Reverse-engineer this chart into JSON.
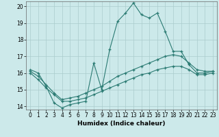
{
  "xlabel": "Humidex (Indice chaleur)",
  "xlim": [
    -0.5,
    23.5
  ],
  "ylim": [
    13.8,
    20.3
  ],
  "yticks": [
    14,
    15,
    16,
    17,
    18,
    19,
    20
  ],
  "xticks": [
    0,
    1,
    2,
    3,
    4,
    5,
    6,
    7,
    8,
    9,
    10,
    11,
    12,
    13,
    14,
    15,
    16,
    17,
    18,
    19,
    20,
    21,
    22,
    23
  ],
  "bg_color": "#cce9ea",
  "grid_color": "#aacccc",
  "line_color": "#2a7a72",
  "series1_x": [
    0,
    1,
    2,
    3,
    4,
    5,
    6,
    7,
    8,
    9,
    10,
    11,
    12,
    13,
    14,
    15,
    16,
    17,
    18,
    19,
    20,
    21,
    22,
    23
  ],
  "series1_y": [
    16.2,
    16.0,
    15.2,
    14.2,
    13.9,
    14.1,
    14.2,
    14.3,
    16.6,
    15.0,
    17.4,
    19.1,
    19.6,
    20.2,
    19.5,
    19.3,
    19.6,
    18.5,
    17.3,
    17.3,
    16.5,
    16.0,
    16.0,
    16.1
  ],
  "series2_x": [
    0,
    1,
    2,
    3,
    4,
    5,
    6,
    7,
    8,
    9,
    10,
    11,
    12,
    13,
    14,
    15,
    16,
    17,
    18,
    19,
    20,
    21,
    22,
    23
  ],
  "series2_y": [
    16.1,
    15.8,
    15.3,
    14.8,
    14.4,
    14.5,
    14.6,
    14.8,
    15.0,
    15.2,
    15.5,
    15.8,
    16.0,
    16.2,
    16.4,
    16.6,
    16.8,
    17.0,
    17.1,
    17.0,
    16.6,
    16.2,
    16.1,
    16.1
  ],
  "series3_x": [
    0,
    1,
    2,
    3,
    4,
    5,
    6,
    7,
    8,
    9,
    10,
    11,
    12,
    13,
    14,
    15,
    16,
    17,
    18,
    19,
    20,
    21,
    22,
    23
  ],
  "series3_y": [
    16.0,
    15.6,
    15.1,
    14.7,
    14.3,
    14.3,
    14.4,
    14.5,
    14.7,
    14.9,
    15.1,
    15.3,
    15.5,
    15.7,
    15.9,
    16.0,
    16.2,
    16.3,
    16.4,
    16.4,
    16.2,
    15.9,
    15.9,
    16.0
  ]
}
